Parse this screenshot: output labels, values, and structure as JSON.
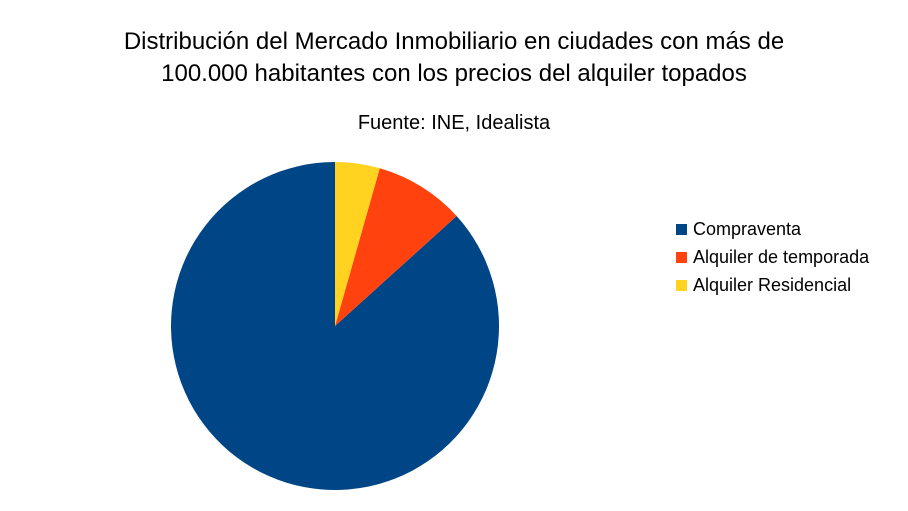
{
  "chart_data": {
    "type": "pie",
    "title": "Distribución del Mercado Inmobiliario en ciudades con más de 100.000 habitantes con los precios del alquiler topados",
    "title_lines": [
      "Distribución del Mercado Inmobiliario en ciudades con más de",
      "100.000 habitantes con los precios del alquiler topados"
    ],
    "subtitle": "Fuente: INE, Idealista",
    "categories": [
      "Compraventa",
      "Alquiler de temporada",
      "Alquiler Residencial"
    ],
    "values": [
      86.7,
      8.9,
      4.4
    ],
    "colors": [
      "#004586",
      "#ff420e",
      "#ffd320"
    ],
    "legend_position": "right"
  }
}
